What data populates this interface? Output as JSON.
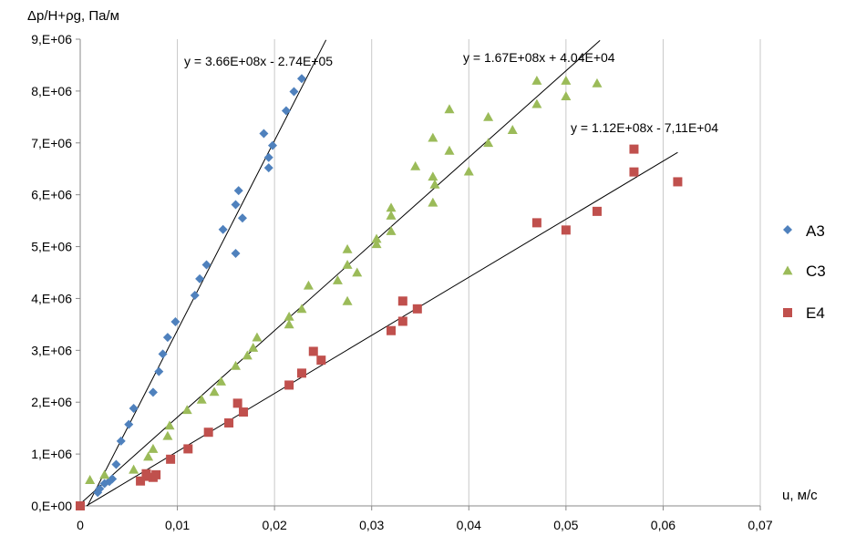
{
  "chart_data": {
    "type": "scatter",
    "title": "",
    "ylabel": "Δp/H+ρg, Па/м",
    "xlabel": "u, м/с",
    "xlim": [
      0,
      0.07
    ],
    "ylim": [
      0,
      9000000
    ],
    "x_ticks": [
      0,
      0.01,
      0.02,
      0.03,
      0.04,
      0.05,
      0.06,
      0.07
    ],
    "x_tick_labels": [
      "0",
      "0,01",
      "0,02",
      "0,03",
      "0,04",
      "0,05",
      "0,06",
      "0,07"
    ],
    "y_ticks": [
      0,
      1000000,
      2000000,
      3000000,
      4000000,
      5000000,
      6000000,
      7000000,
      8000000,
      9000000
    ],
    "y_tick_labels": [
      "0,E+00",
      "1,E+06",
      "2,E+06",
      "3,E+06",
      "4,E+06",
      "5,E+06",
      "6,E+06",
      "7,E+06",
      "8,E+06",
      "9,E+06"
    ],
    "grid": "vertical",
    "legend_position": "right",
    "series": [
      {
        "name": "A3",
        "marker": "diamond",
        "color": "#4F81BD",
        "points": [
          [
            0,
            0
          ],
          [
            0.0018,
            260000
          ],
          [
            0.002,
            330000
          ],
          [
            0.0025,
            430000
          ],
          [
            0.003,
            470000
          ],
          [
            0.0033,
            520000
          ],
          [
            0.0037,
            800000
          ],
          [
            0.0042,
            1250000
          ],
          [
            0.005,
            1570000
          ],
          [
            0.0055,
            1880000
          ],
          [
            0.0075,
            2190000
          ],
          [
            0.0081,
            2590000
          ],
          [
            0.0085,
            2930000
          ],
          [
            0.009,
            3250000
          ],
          [
            0.0098,
            3550000
          ],
          [
            0.0118,
            4060000
          ],
          [
            0.0123,
            4380000
          ],
          [
            0.013,
            4650000
          ],
          [
            0.0147,
            5330000
          ],
          [
            0.016,
            4870000
          ],
          [
            0.016,
            5810000
          ],
          [
            0.0163,
            6080000
          ],
          [
            0.0167,
            5550000
          ],
          [
            0.0189,
            7180000
          ],
          [
            0.0194,
            6520000
          ],
          [
            0.0194,
            6720000
          ],
          [
            0.0198,
            6950000
          ],
          [
            0.0212,
            7620000
          ],
          [
            0.022,
            7990000
          ],
          [
            0.0228,
            8240000
          ]
        ],
        "trendline": {
          "slope": 366000000,
          "intercept": -274000,
          "x_range": [
            0.00075,
            0.0253
          ],
          "equation": "y = 3.66E+08x - 2.74E+05"
        }
      },
      {
        "name": "C3",
        "marker": "triangle",
        "color": "#9BBB59",
        "points": [
          [
            0.001,
            500000
          ],
          [
            0.0025,
            600000
          ],
          [
            0.0055,
            700000
          ],
          [
            0.007,
            950000
          ],
          [
            0.0075,
            1100000
          ],
          [
            0.009,
            1350000
          ],
          [
            0.0092,
            1550000
          ],
          [
            0.011,
            1850000
          ],
          [
            0.0125,
            2050000
          ],
          [
            0.0138,
            2200000
          ],
          [
            0.0145,
            2400000
          ],
          [
            0.016,
            2700000
          ],
          [
            0.0172,
            2900000
          ],
          [
            0.0178,
            3050000
          ],
          [
            0.0182,
            3250000
          ],
          [
            0.0215,
            3500000
          ],
          [
            0.0215,
            3650000
          ],
          [
            0.0228,
            3800000
          ],
          [
            0.0235,
            4250000
          ],
          [
            0.0265,
            4350000
          ],
          [
            0.0275,
            3950000
          ],
          [
            0.0275,
            4650000
          ],
          [
            0.0275,
            4950000
          ],
          [
            0.0285,
            4500000
          ],
          [
            0.0305,
            5050000
          ],
          [
            0.0305,
            5150000
          ],
          [
            0.032,
            5300000
          ],
          [
            0.032,
            5600000
          ],
          [
            0.032,
            5750000
          ],
          [
            0.0345,
            6550000
          ],
          [
            0.0363,
            5850000
          ],
          [
            0.0363,
            6350000
          ],
          [
            0.0363,
            7100000
          ],
          [
            0.0365,
            6200000
          ],
          [
            0.038,
            6850000
          ],
          [
            0.038,
            7650000
          ],
          [
            0.04,
            6450000
          ],
          [
            0.042,
            7000000
          ],
          [
            0.042,
            7500000
          ],
          [
            0.0445,
            7250000
          ],
          [
            0.047,
            7750000
          ],
          [
            0.047,
            8200000
          ],
          [
            0.05,
            7900000
          ],
          [
            0.05,
            8200000
          ],
          [
            0.0532,
            8150000
          ]
        ],
        "trendline": {
          "slope": 167000000,
          "intercept": 40400,
          "x_range": [
            0,
            0.0535
          ],
          "equation": "y = 1.67E+08x + 4.04E+04"
        }
      },
      {
        "name": "E4",
        "marker": "square",
        "color": "#C0504D",
        "points": [
          [
            0,
            0
          ],
          [
            0.0062,
            480000
          ],
          [
            0.0068,
            570000
          ],
          [
            0.0068,
            620000
          ],
          [
            0.0075,
            550000
          ],
          [
            0.0078,
            600000
          ],
          [
            0.0093,
            900000
          ],
          [
            0.0111,
            1100000
          ],
          [
            0.0132,
            1420000
          ],
          [
            0.0153,
            1600000
          ],
          [
            0.0162,
            1980000
          ],
          [
            0.0168,
            1810000
          ],
          [
            0.0215,
            2330000
          ],
          [
            0.0228,
            2560000
          ],
          [
            0.024,
            2980000
          ],
          [
            0.0248,
            2810000
          ],
          [
            0.032,
            3380000
          ],
          [
            0.0332,
            3560000
          ],
          [
            0.0332,
            3950000
          ],
          [
            0.0347,
            3800000
          ],
          [
            0.047,
            5460000
          ],
          [
            0.05,
            5320000
          ],
          [
            0.0532,
            5680000
          ],
          [
            0.057,
            6440000
          ],
          [
            0.057,
            6880000
          ],
          [
            0.0615,
            6250000
          ]
        ],
        "trendline": {
          "slope": 112000000,
          "intercept": -71100,
          "x_range": [
            0.00064,
            0.0615
          ],
          "equation": "y = 1.12E+08x - 7,11E+04"
        }
      }
    ]
  }
}
